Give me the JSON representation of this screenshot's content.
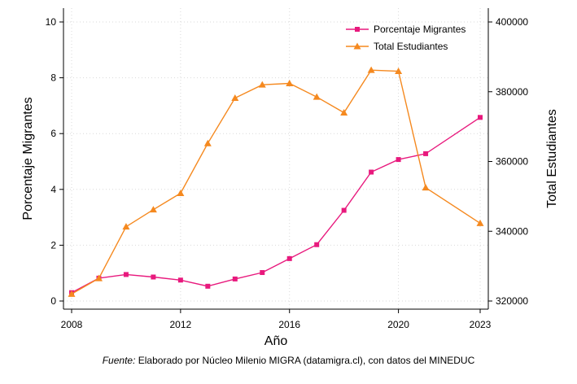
{
  "chart_data": {
    "type": "line",
    "x": [
      2008,
      2009,
      2010,
      2011,
      2012,
      2013,
      2014,
      2015,
      2016,
      2017,
      2018,
      2019,
      2020,
      2021,
      2023
    ],
    "xticks": [
      "2008",
      "2012",
      "2016",
      "2020",
      "2023"
    ],
    "xlabel": "Año",
    "xlim": [
      2008,
      2023
    ],
    "series": [
      {
        "name": "Porcentaje Migrantes",
        "axis": "left",
        "color": "#e8197d",
        "marker": "square",
        "values": [
          0.3,
          0.82,
          0.95,
          0.86,
          0.75,
          0.53,
          0.79,
          1.02,
          1.52,
          2.02,
          3.25,
          4.62,
          5.07,
          5.28,
          6.58
        ]
      },
      {
        "name": "Total Estudiantes",
        "axis": "right",
        "color": "#f5891f",
        "marker": "triangle",
        "values": [
          322000,
          326500,
          341300,
          346200,
          350900,
          365200,
          378200,
          382000,
          382400,
          378500,
          374000,
          386200,
          385900,
          352500,
          342300
        ]
      }
    ],
    "y_left": {
      "label": "Porcentaje Migrantes",
      "ylim": [
        0,
        10
      ],
      "ticks": [
        "0",
        "2",
        "4",
        "6",
        "8",
        "10"
      ]
    },
    "y_right": {
      "label": "Total Estudiantes",
      "ylim": [
        320000,
        400000
      ],
      "ticks": [
        "320000",
        "340000",
        "360000",
        "380000",
        "400000"
      ]
    },
    "grid": true,
    "legend_position": "top-right",
    "source": {
      "label": "Fuente:",
      "text": " Elaborado por Núcleo Milenio MIGRA (datamigra.cl), con datos del MINEDUC"
    }
  }
}
